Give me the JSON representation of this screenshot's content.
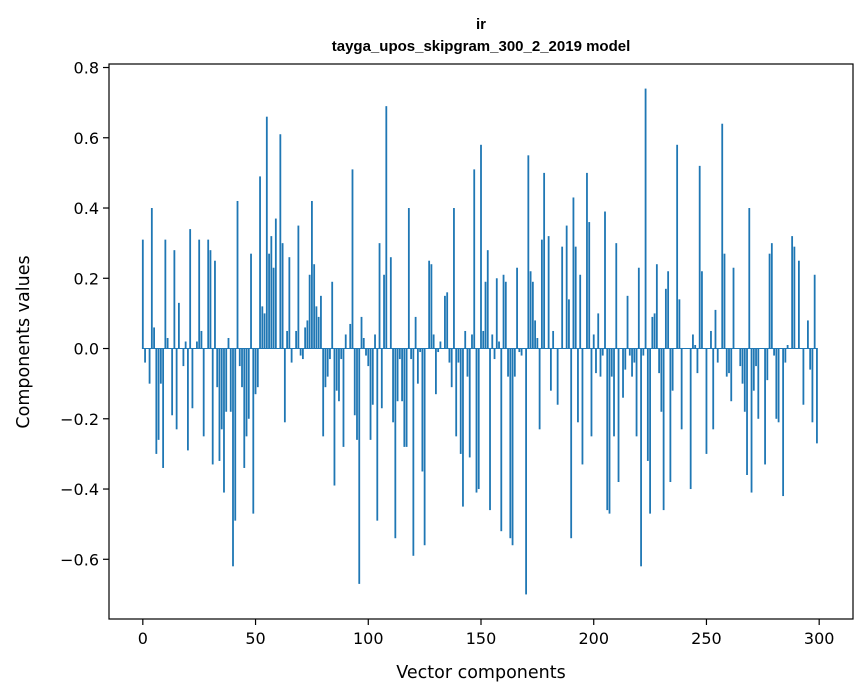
{
  "chart_data": {
    "type": "bar",
    "title": "ir",
    "subtitle": "tayga_upos_skipgram_300_2_2019 model",
    "xlabel": "Vector components",
    "ylabel": "Components values",
    "xlim": [
      -15,
      315
    ],
    "ylim": [
      -0.77,
      0.81
    ],
    "xticks": [
      0,
      50,
      100,
      150,
      200,
      250,
      300
    ],
    "xtick_labels": [
      "0",
      "50",
      "100",
      "150",
      "200",
      "250",
      "300"
    ],
    "yticks": [
      -0.6,
      -0.4,
      -0.2,
      0.0,
      0.2,
      0.4,
      0.6,
      0.8
    ],
    "ytick_labels": [
      "−0.6",
      "−0.4",
      "−0.2",
      "0.0",
      "0.2",
      "0.4",
      "0.6",
      "0.8"
    ],
    "grid": false,
    "color": "#1f77b4",
    "x_start": 0,
    "values": [
      0.31,
      -0.04,
      0.0,
      -0.1,
      0.4,
      0.06,
      -0.3,
      -0.26,
      -0.1,
      -0.34,
      0.31,
      0.03,
      0.0,
      -0.19,
      0.28,
      -0.23,
      0.13,
      0.0,
      -0.05,
      0.02,
      -0.29,
      0.34,
      -0.17,
      0.0,
      0.02,
      0.31,
      0.05,
      -0.25,
      0.0,
      0.31,
      0.28,
      -0.33,
      0.25,
      -0.11,
      -0.32,
      -0.23,
      -0.41,
      -0.18,
      0.03,
      -0.18,
      -0.62,
      -0.49,
      0.42,
      -0.05,
      -0.11,
      -0.34,
      -0.25,
      -0.2,
      0.27,
      -0.47,
      -0.13,
      -0.11,
      0.49,
      0.12,
      0.1,
      0.66,
      0.27,
      0.32,
      0.23,
      0.37,
      0.0,
      0.61,
      0.3,
      -0.21,
      0.05,
      0.26,
      -0.04,
      0.0,
      0.05,
      0.35,
      -0.02,
      -0.03,
      0.06,
      0.08,
      0.21,
      0.42,
      0.24,
      0.12,
      0.09,
      0.15,
      -0.25,
      -0.11,
      -0.08,
      -0.03,
      0.19,
      -0.39,
      -0.12,
      -0.15,
      -0.03,
      -0.28,
      0.04,
      0.0,
      0.07,
      0.51,
      -0.19,
      -0.26,
      -0.67,
      0.09,
      0.03,
      -0.02,
      -0.05,
      -0.26,
      -0.16,
      0.04,
      -0.49,
      0.3,
      -0.17,
      0.21,
      0.69,
      0.0,
      0.26,
      -0.21,
      -0.54,
      -0.15,
      -0.03,
      -0.15,
      -0.28,
      -0.28,
      0.4,
      -0.03,
      -0.59,
      0.09,
      -0.1,
      -0.01,
      -0.35,
      -0.56,
      0.0,
      0.25,
      0.24,
      0.04,
      -0.13,
      -0.01,
      0.02,
      0.0,
      0.15,
      0.16,
      -0.04,
      -0.11,
      0.4,
      -0.25,
      -0.04,
      -0.3,
      -0.45,
      0.05,
      -0.08,
      -0.31,
      0.04,
      0.51,
      -0.41,
      -0.4,
      0.58,
      0.05,
      0.19,
      0.28,
      -0.46,
      0.04,
      -0.03,
      0.2,
      0.02,
      -0.52,
      0.21,
      0.19,
      -0.08,
      -0.54,
      -0.56,
      -0.08,
      0.23,
      -0.01,
      -0.02,
      0.0,
      -0.7,
      0.55,
      0.22,
      0.19,
      0.08,
      0.03,
      -0.23,
      0.31,
      0.5,
      0.0,
      0.32,
      -0.12,
      0.05,
      0.0,
      -0.16,
      0.0,
      0.29,
      0.0,
      0.35,
      0.14,
      -0.54,
      0.43,
      0.29,
      -0.21,
      0.21,
      -0.33,
      0.0,
      0.5,
      0.36,
      -0.25,
      0.04,
      -0.07,
      0.1,
      -0.08,
      -0.02,
      0.39,
      -0.46,
      -0.47,
      -0.08,
      -0.25,
      0.3,
      -0.38,
      0.0,
      -0.14,
      -0.06,
      0.15,
      -0.02,
      -0.08,
      -0.04,
      -0.25,
      0.23,
      -0.62,
      -0.02,
      0.74,
      -0.32,
      -0.47,
      0.09,
      0.1,
      0.24,
      -0.07,
      -0.18,
      -0.46,
      0.17,
      0.22,
      -0.38,
      -0.12,
      0.0,
      0.58,
      0.14,
      -0.23,
      0.0,
      0.0,
      0.0,
      -0.4,
      0.04,
      0.01,
      -0.07,
      0.52,
      0.22,
      0.0,
      -0.3,
      0.0,
      0.05,
      -0.23,
      0.11,
      -0.04,
      0.0,
      0.64,
      0.27,
      -0.08,
      -0.07,
      -0.15,
      0.23,
      0.0,
      0.0,
      -0.05,
      -0.1,
      -0.18,
      -0.36,
      0.4,
      -0.41,
      -0.12,
      -0.05,
      -0.2,
      0.0,
      0.0,
      -0.33,
      -0.09,
      0.27,
      0.3,
      -0.02,
      -0.2,
      -0.21,
      0.0,
      -0.42,
      -0.04,
      0.01,
      0.0,
      0.32,
      0.29,
      0.0,
      0.25,
      0.0,
      -0.16,
      0.0,
      0.08,
      -0.06,
      -0.21,
      0.21,
      -0.27
    ]
  }
}
